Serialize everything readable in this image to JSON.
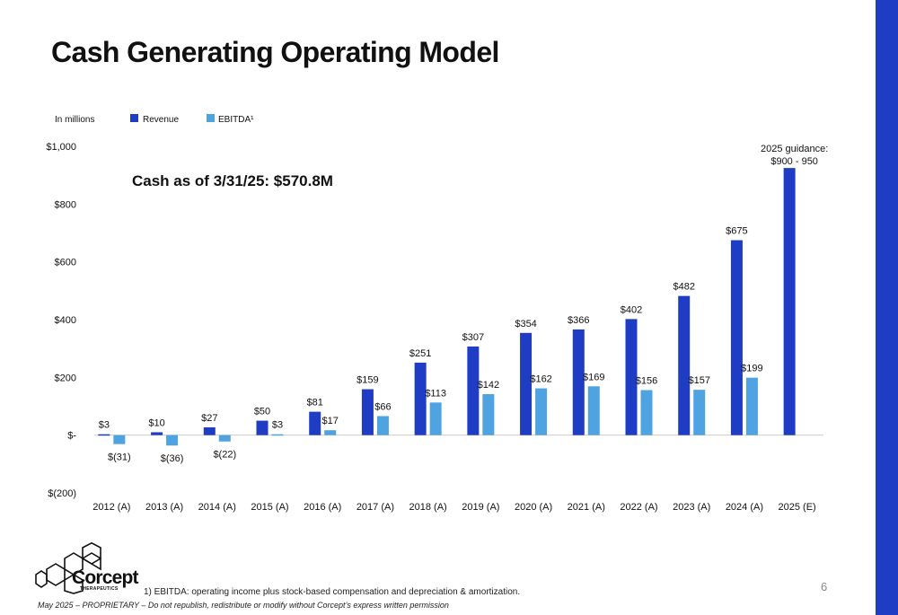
{
  "slide": {
    "title": "Cash Generating Operating Model",
    "page_number": "6",
    "footnote": "1) EBITDA: operating income plus stock-based compensation and depreciation & amortization.",
    "disclaimer": "May 2025 – PROPRIETARY – Do not republish, redistribute or modify without Corcept’s express written permission",
    "logo": {
      "name": "Corcept",
      "subtitle": "THERAPEUTICS"
    }
  },
  "colors": {
    "revenue": "#1f3cc4",
    "ebitda": "#4fa3e0",
    "accent_bar": "#1f3cc4",
    "axis": "#cccccc"
  },
  "chart_data": {
    "type": "bar",
    "unit_label": "In millions",
    "categories": [
      "2012 (A)",
      "2013 (A)",
      "2014 (A)",
      "2015 (A)",
      "2016 (A)",
      "2017 (A)",
      "2018 (A)",
      "2019 (A)",
      "2020 (A)",
      "2021 (A)",
      "2022 (A)",
      "2023 (A)",
      "2024 (A)",
      "2025 (E)"
    ],
    "series": [
      {
        "name": "Revenue",
        "values": [
          3,
          10,
          27,
          50,
          81,
          159,
          251,
          307,
          354,
          366,
          402,
          482,
          675,
          925
        ],
        "labels": [
          "$3",
          "$10",
          "$27",
          "$50",
          "$81",
          "$159",
          "$251",
          "$307",
          "$354",
          "$366",
          "$402",
          "$482",
          "$675",
          null
        ]
      },
      {
        "name": "EBITDA",
        "legend_label": "EBITDA¹",
        "values": [
          -31,
          -36,
          -22,
          3,
          17,
          66,
          113,
          142,
          162,
          169,
          156,
          157,
          199,
          null
        ],
        "labels": [
          "$(31)",
          "$(36)",
          "$(22)",
          "$3",
          "$17",
          "$66",
          "$113",
          "$142",
          "$162",
          "$169",
          "$156",
          "$157",
          "$199",
          null
        ]
      }
    ],
    "ylim": [
      -200,
      1000
    ],
    "y_ticks": [
      {
        "value": 1000,
        "label": "$1,000"
      },
      {
        "value": 800,
        "label": "$800"
      },
      {
        "value": 600,
        "label": "$600"
      },
      {
        "value": 400,
        "label": "$400"
      },
      {
        "value": 200,
        "label": "$200"
      },
      {
        "value": 0,
        "label": "$-"
      },
      {
        "value": -200,
        "label": "$(200)"
      }
    ],
    "annotations": [
      {
        "text": "Cash as of 3/31/25: $570.8M"
      },
      {
        "text": "2025 guidance:",
        "text2": "$900 - 950"
      }
    ],
    "legend_position": "top-left"
  }
}
